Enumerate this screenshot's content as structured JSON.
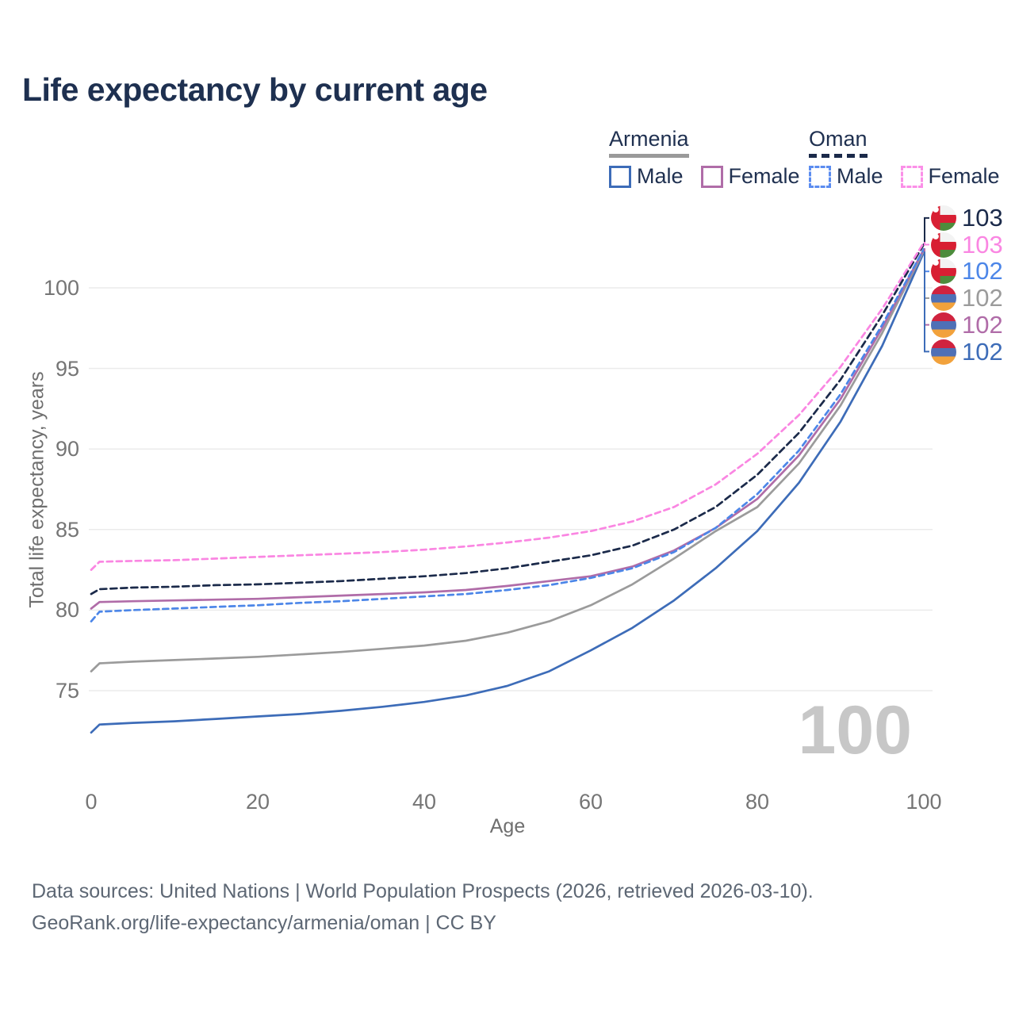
{
  "title": "Life expectancy by current age",
  "legend": {
    "groups": [
      {
        "name": "Armenia",
        "line_style": "solid",
        "underline_color": "#9a9a9a",
        "items": [
          {
            "label": "Male",
            "color": "#3d6cb8"
          },
          {
            "label": "Female",
            "color": "#b06da8"
          }
        ]
      },
      {
        "name": "Oman",
        "line_style": "dashed",
        "underline_color": "#1b2a4a",
        "items": [
          {
            "label": "Male",
            "color": "#5b8cf0"
          },
          {
            "label": "Female",
            "color": "#fb90e8"
          }
        ]
      }
    ]
  },
  "axes": {
    "x_title": "Age",
    "y_title": "Total life expectancy, years",
    "x_ticks": [
      0,
      20,
      40,
      60,
      80,
      100
    ],
    "y_ticks": [
      75,
      80,
      85,
      90,
      95,
      100
    ]
  },
  "chart_data": {
    "type": "line",
    "title": "Life expectancy by current age",
    "xlabel": "Age",
    "ylabel": "Total life expectancy, years",
    "xlim": [
      0,
      100
    ],
    "ylim": [
      72,
      103.5
    ],
    "grid": "horizontal",
    "legend_position": "top-right",
    "x": [
      0,
      1,
      5,
      10,
      15,
      20,
      25,
      30,
      35,
      40,
      45,
      50,
      55,
      60,
      65,
      70,
      75,
      80,
      85,
      90,
      95,
      100
    ],
    "series": [
      {
        "name": "Oman Both sexes",
        "country": "Oman",
        "sex": "Both",
        "color": "#1b2a4a",
        "dash": "8 5",
        "values": [
          81.0,
          81.3,
          81.4,
          81.45,
          81.55,
          81.6,
          81.7,
          81.8,
          81.95,
          82.1,
          82.3,
          82.6,
          83.0,
          83.4,
          84.0,
          85.0,
          86.4,
          88.4,
          91.0,
          94.3,
          98.3,
          102.7
        ],
        "end_label": "103",
        "flag": "oman"
      },
      {
        "name": "Oman Female",
        "country": "Oman",
        "sex": "Female",
        "color": "#fa86e2",
        "dash": "7 5",
        "values": [
          82.5,
          83.0,
          83.05,
          83.1,
          83.2,
          83.3,
          83.4,
          83.5,
          83.6,
          83.75,
          83.95,
          84.2,
          84.5,
          84.9,
          85.5,
          86.4,
          87.8,
          89.7,
          92.1,
          95.1,
          98.7,
          102.8
        ],
        "end_label": "103",
        "flag": "oman"
      },
      {
        "name": "Oman Male",
        "country": "Oman",
        "sex": "Male",
        "color": "#4c86e8",
        "dash": "7 5",
        "values": [
          79.3,
          79.9,
          80.0,
          80.1,
          80.2,
          80.3,
          80.45,
          80.55,
          80.7,
          80.85,
          81.0,
          81.25,
          81.55,
          82.0,
          82.6,
          83.6,
          85.1,
          87.2,
          89.9,
          93.4,
          97.7,
          102.4
        ],
        "end_label": "102",
        "flag": "oman"
      },
      {
        "name": "Armenia Both sexes",
        "country": "Armenia",
        "sex": "Both",
        "color": "#9b9b9b",
        "dash": null,
        "values": [
          76.2,
          76.7,
          76.8,
          76.9,
          77.0,
          77.1,
          77.25,
          77.4,
          77.6,
          77.8,
          78.1,
          78.6,
          79.3,
          80.3,
          81.6,
          83.2,
          84.9,
          86.4,
          89.1,
          92.7,
          97.2,
          102.3
        ],
        "end_label": "102",
        "flag": "armenia"
      },
      {
        "name": "Armenia Female",
        "country": "Armenia",
        "sex": "Female",
        "color": "#b06ca8",
        "dash": null,
        "values": [
          80.1,
          80.5,
          80.55,
          80.6,
          80.65,
          80.7,
          80.8,
          80.9,
          81.0,
          81.1,
          81.25,
          81.5,
          81.8,
          82.1,
          82.7,
          83.7,
          85.1,
          86.9,
          89.6,
          93.1,
          97.5,
          102.4
        ],
        "end_label": "102",
        "flag": "armenia"
      },
      {
        "name": "Armenia Male",
        "country": "Armenia",
        "sex": "Male",
        "color": "#3d6cb8",
        "dash": null,
        "values": [
          72.4,
          72.9,
          73.0,
          73.1,
          73.25,
          73.4,
          73.55,
          73.75,
          74.0,
          74.3,
          74.7,
          75.3,
          76.2,
          77.5,
          78.9,
          80.6,
          82.6,
          84.9,
          87.9,
          91.7,
          96.4,
          102.2
        ],
        "end_label": "102",
        "flag": "armenia"
      }
    ]
  },
  "watermark": "100",
  "footer": {
    "line1": "Data sources: United Nations | World Population Prospects (2026, retrieved 2026-03-10).",
    "line2": "GeoRank.org/life-expectancy/armenia/oman | CC BY"
  }
}
